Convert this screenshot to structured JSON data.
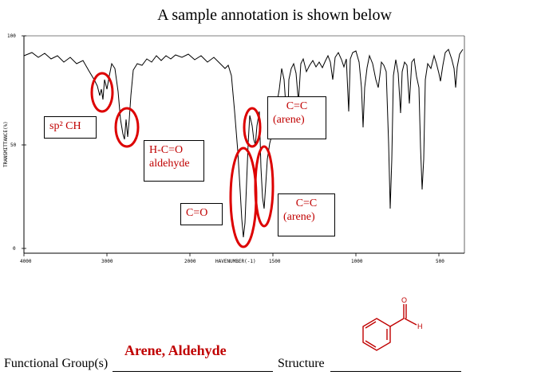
{
  "title": "A sample annotation is shown below",
  "spectrum": {
    "ylabel": "TRANSMITTANCE(%)",
    "xlabel": "HAVENUMBER(-1)",
    "y_ticks": [
      "100",
      "50",
      "0"
    ],
    "x_ticks": [
      "4000",
      "3000",
      "2000",
      "1500",
      "1000",
      "500"
    ],
    "trace_color": "#000000",
    "annotation_color": "#dd0000"
  },
  "annotations": {
    "sp2_ch": "sp² CH",
    "aldehyde_line1": "H-C=O",
    "aldehyde_line2": "aldehyde",
    "carbonyl": "C=O",
    "arene_top_line1": "C=C",
    "arene_top_line2": "(arene)",
    "arene_bottom_line1": "C=C",
    "arene_bottom_line2": "(arene)"
  },
  "answer": {
    "functional_groups_label": "Functional Group(s)",
    "functional_groups_value": "Arene, Aldehyde",
    "structure_label": "Structure",
    "structure_atoms": {
      "oxygen": "O",
      "hydrogen": "H"
    },
    "structure_color": "#c00000"
  }
}
